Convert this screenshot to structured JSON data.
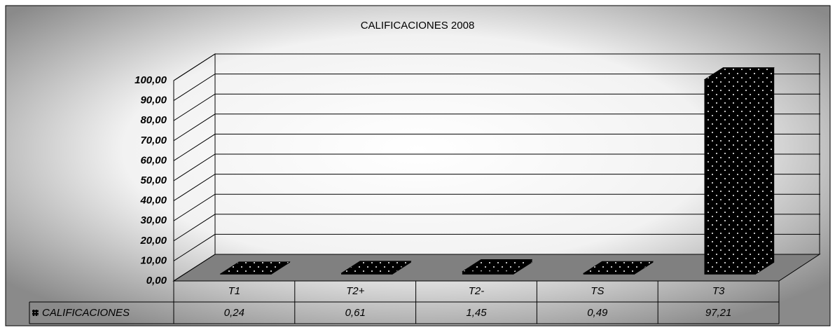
{
  "chart_data": {
    "type": "bar3d",
    "title": "CALIFICACIONES 2008",
    "categories": [
      "T1",
      "T2+",
      "T2-",
      "TS",
      "T3"
    ],
    "series": [
      {
        "name": "CALIFICACIONES",
        "color": "#000000",
        "values": [
          0.24,
          0.61,
          1.45,
          0.49,
          97.21
        ],
        "value_labels": [
          "0,24",
          "0,61",
          "1,45",
          "0,49",
          "97,21"
        ]
      }
    ],
    "ylim": [
      0,
      100
    ],
    "yticks": [
      {
        "value": 0,
        "label": "0,00"
      },
      {
        "value": 10,
        "label": "10,00"
      },
      {
        "value": 20,
        "label": "20,00"
      },
      {
        "value": 30,
        "label": "30,00"
      },
      {
        "value": 40,
        "label": "40,00"
      },
      {
        "value": 50,
        "label": "50,00"
      },
      {
        "value": 60,
        "label": "60,00"
      },
      {
        "value": 70,
        "label": "70,00"
      },
      {
        "value": 80,
        "label": "80,00"
      },
      {
        "value": 90,
        "label": "90,00"
      },
      {
        "value": 100,
        "label": "100,00"
      }
    ],
    "grid": true,
    "data_table": true
  }
}
